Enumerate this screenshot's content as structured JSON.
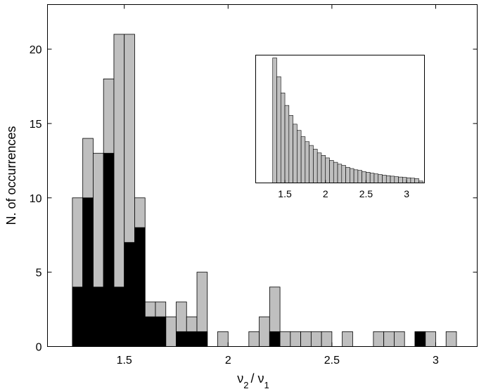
{
  "chart_data": [
    {
      "type": "bar",
      "xlabel": "ν2 / ν1",
      "ylabel": "N. of occurrences",
      "xlim": [
        1.13,
        3.2
      ],
      "ylim": [
        0,
        23
      ],
      "xticks": [
        1.5,
        2,
        2.5,
        3
      ],
      "yticks": [
        0,
        5,
        10,
        15,
        20
      ],
      "grid": false,
      "bin_width": 0.05,
      "bin_starts": [
        1.25,
        1.3,
        1.35,
        1.4,
        1.45,
        1.5,
        1.55,
        1.6,
        1.65,
        1.7,
        1.75,
        1.8,
        1.85,
        1.9,
        1.95,
        2.0,
        2.05,
        2.1,
        2.15,
        2.2,
        2.25,
        2.3,
        2.35,
        2.4,
        2.45,
        2.5,
        2.55,
        2.6,
        2.65,
        2.7,
        2.75,
        2.8,
        2.85,
        2.9,
        2.95,
        3.0,
        3.05,
        3.1
      ],
      "series": [
        {
          "values": [
            10,
            14,
            13,
            18,
            21,
            21,
            10,
            3,
            3,
            2,
            3,
            2,
            5,
            0,
            1,
            0,
            0,
            1,
            2,
            4,
            1,
            1,
            1,
            1,
            1,
            0,
            1,
            0,
            0,
            1,
            1,
            1,
            0,
            1,
            1,
            0,
            1,
            0
          ],
          "color": "#bfbfbf"
        },
        {
          "values": [
            4,
            10,
            4,
            13,
            4,
            7,
            8,
            2,
            2,
            0,
            1,
            1,
            1,
            0,
            0,
            0,
            0,
            0,
            0,
            1,
            0,
            0,
            0,
            0,
            0,
            0,
            0,
            0,
            0,
            0,
            0,
            0,
            0,
            1,
            0,
            0,
            0,
            0
          ],
          "color": "#000000"
        }
      ]
    },
    {
      "type": "bar",
      "inset": true,
      "xlim": [
        1.14,
        3.22
      ],
      "xticks": [
        1.5,
        2,
        2.5,
        3
      ],
      "grid": false,
      "bin_width": 0.05,
      "bin_starts": [
        1.35,
        1.4,
        1.45,
        1.5,
        1.55,
        1.6,
        1.65,
        1.7,
        1.75,
        1.8,
        1.85,
        1.9,
        1.95,
        2.0,
        2.05,
        2.1,
        2.15,
        2.2,
        2.25,
        2.3,
        2.35,
        2.4,
        2.45,
        2.5,
        2.55,
        2.6,
        2.65,
        2.7,
        2.75,
        2.8,
        2.85,
        2.9,
        2.95,
        3.0,
        3.05,
        3.1,
        3.15
      ],
      "values": [
        1.0,
        0.85,
        0.72,
        0.62,
        0.54,
        0.47,
        0.42,
        0.37,
        0.33,
        0.3,
        0.27,
        0.24,
        0.22,
        0.2,
        0.18,
        0.165,
        0.15,
        0.14,
        0.125,
        0.115,
        0.105,
        0.1,
        0.09,
        0.085,
        0.078,
        0.072,
        0.067,
        0.062,
        0.058,
        0.054,
        0.05,
        0.047,
        0.044,
        0.041,
        0.038,
        0.035,
        0.015
      ],
      "color": "#bfbfbf"
    }
  ]
}
